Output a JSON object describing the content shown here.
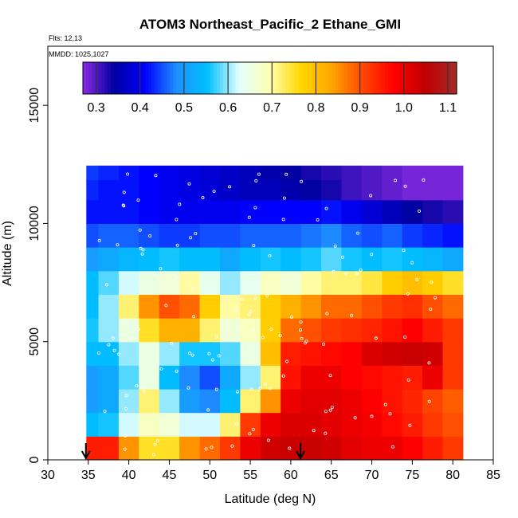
{
  "chart_data": {
    "type": "heatmap",
    "title": "ATOM3 Northeast_Pacific_2 Ethane_GMI",
    "notes": [
      "Flts: 12,13",
      "MMDD: 1025,1027"
    ],
    "xlabel": "Latitude (deg N)",
    "ylabel": "Altitude (m)",
    "xlim": [
      30,
      85
    ],
    "ylim": [
      0,
      17500
    ],
    "x_ticks": [
      "30",
      "35",
      "40",
      "45",
      "50",
      "55",
      "60",
      "65",
      "70",
      "75",
      "80",
      "85"
    ],
    "y_ticks": [
      "0",
      "5000",
      "10000",
      "15000"
    ],
    "colorbar": {
      "range": [
        0.27,
        1.12
      ],
      "ticks": [
        "0.3",
        "0.4",
        "0.5",
        "0.6",
        "0.7",
        "0.8",
        "0.9",
        "1.0",
        "1.1"
      ],
      "colors": [
        "#8a2be2",
        "#0000a0",
        "#0000ff",
        "#1e90ff",
        "#00bfff",
        "#e0ffff",
        "#ffffb0",
        "#ffd700",
        "#ffa500",
        "#ff4500",
        "#ff0000",
        "#c00000",
        "#a52a2a"
      ]
    },
    "lat_bins": [
      35,
      37.5,
      40,
      42.5,
      45,
      47.5,
      50,
      52.5,
      55,
      57.5,
      60,
      62.5,
      65,
      67.5,
      70,
      72.5,
      75,
      77.5,
      80
    ],
    "alt_bins": [
      500,
      1500,
      2500,
      3500,
      4500,
      5500,
      6500,
      7500,
      8500,
      9500,
      10500,
      11500,
      12200
    ],
    "values": [
      [
        0.95,
        0.95,
        0.85,
        0.75,
        0.75,
        0.85,
        0.88,
        0.92,
        1.0,
        1.03,
        1.04,
        1.04,
        1.03,
        1.01,
        1.0,
        1.0,
        0.98,
        0.95,
        0.92
      ],
      [
        0.55,
        0.56,
        0.62,
        0.68,
        0.66,
        0.62,
        0.62,
        0.72,
        0.92,
        1.0,
        1.02,
        1.02,
        1.01,
        1.0,
        0.99,
        0.97,
        0.95,
        0.92,
        0.9
      ],
      [
        0.5,
        0.52,
        0.6,
        0.72,
        0.6,
        0.5,
        0.48,
        0.55,
        0.72,
        0.85,
        1.0,
        1.01,
        1.01,
        1.0,
        0.98,
        0.96,
        0.94,
        0.91,
        0.89
      ],
      [
        0.5,
        0.52,
        0.58,
        0.65,
        0.55,
        0.48,
        0.45,
        0.52,
        0.6,
        0.72,
        0.96,
        1.0,
        1.0,
        0.98,
        0.97,
        0.96,
        0.95,
        1.0,
        0.92
      ],
      [
        0.55,
        0.55,
        0.6,
        0.65,
        0.6,
        0.56,
        0.56,
        0.58,
        0.65,
        0.8,
        0.95,
        0.96,
        0.97,
        0.98,
        1.02,
        1.03,
        1.04,
        1.03,
        0.92
      ],
      [
        0.56,
        0.6,
        0.65,
        0.75,
        0.82,
        0.82,
        0.72,
        0.66,
        0.68,
        0.78,
        0.88,
        0.9,
        0.92,
        0.93,
        0.94,
        0.96,
        0.98,
        0.95,
        0.92
      ],
      [
        0.55,
        0.6,
        0.72,
        0.85,
        0.9,
        0.88,
        0.78,
        0.7,
        0.72,
        0.78,
        0.82,
        0.85,
        0.88,
        0.88,
        0.9,
        0.92,
        0.93,
        0.9,
        0.88
      ],
      [
        0.55,
        0.58,
        0.62,
        0.65,
        0.66,
        0.7,
        0.64,
        0.6,
        0.64,
        0.68,
        0.66,
        0.7,
        0.72,
        0.72,
        0.74,
        0.78,
        0.8,
        0.78,
        0.75
      ],
      [
        0.5,
        0.52,
        0.54,
        0.55,
        0.56,
        0.55,
        0.55,
        0.52,
        0.55,
        0.56,
        0.55,
        0.56,
        0.58,
        0.56,
        0.55,
        0.56,
        0.55,
        0.54,
        0.52
      ],
      [
        0.45,
        0.46,
        0.46,
        0.45,
        0.44,
        0.44,
        0.45,
        0.45,
        0.46,
        0.46,
        0.46,
        0.47,
        0.48,
        0.46,
        0.45,
        0.46,
        0.44,
        0.43,
        0.42
      ],
      [
        0.42,
        0.42,
        0.42,
        0.41,
        0.4,
        0.4,
        0.4,
        0.4,
        0.41,
        0.41,
        0.41,
        0.41,
        0.42,
        0.4,
        0.38,
        0.36,
        0.34,
        0.33,
        0.32
      ],
      [
        0.43,
        0.42,
        0.42,
        0.41,
        0.4,
        0.39,
        0.38,
        0.37,
        0.36,
        0.36,
        0.35,
        0.34,
        0.33,
        0.31,
        0.3,
        0.29,
        0.28,
        0.28,
        0.28
      ],
      [
        0.44,
        0.43,
        0.42,
        0.41,
        0.4,
        0.39,
        0.38,
        0.37,
        0.36,
        0.35,
        0.34,
        0.33,
        0.32,
        0.31,
        0.3,
        0.29,
        0.28,
        0.28,
        0.28
      ]
    ],
    "arrows_at_lat": [
      34.7,
      61.2
    ]
  }
}
